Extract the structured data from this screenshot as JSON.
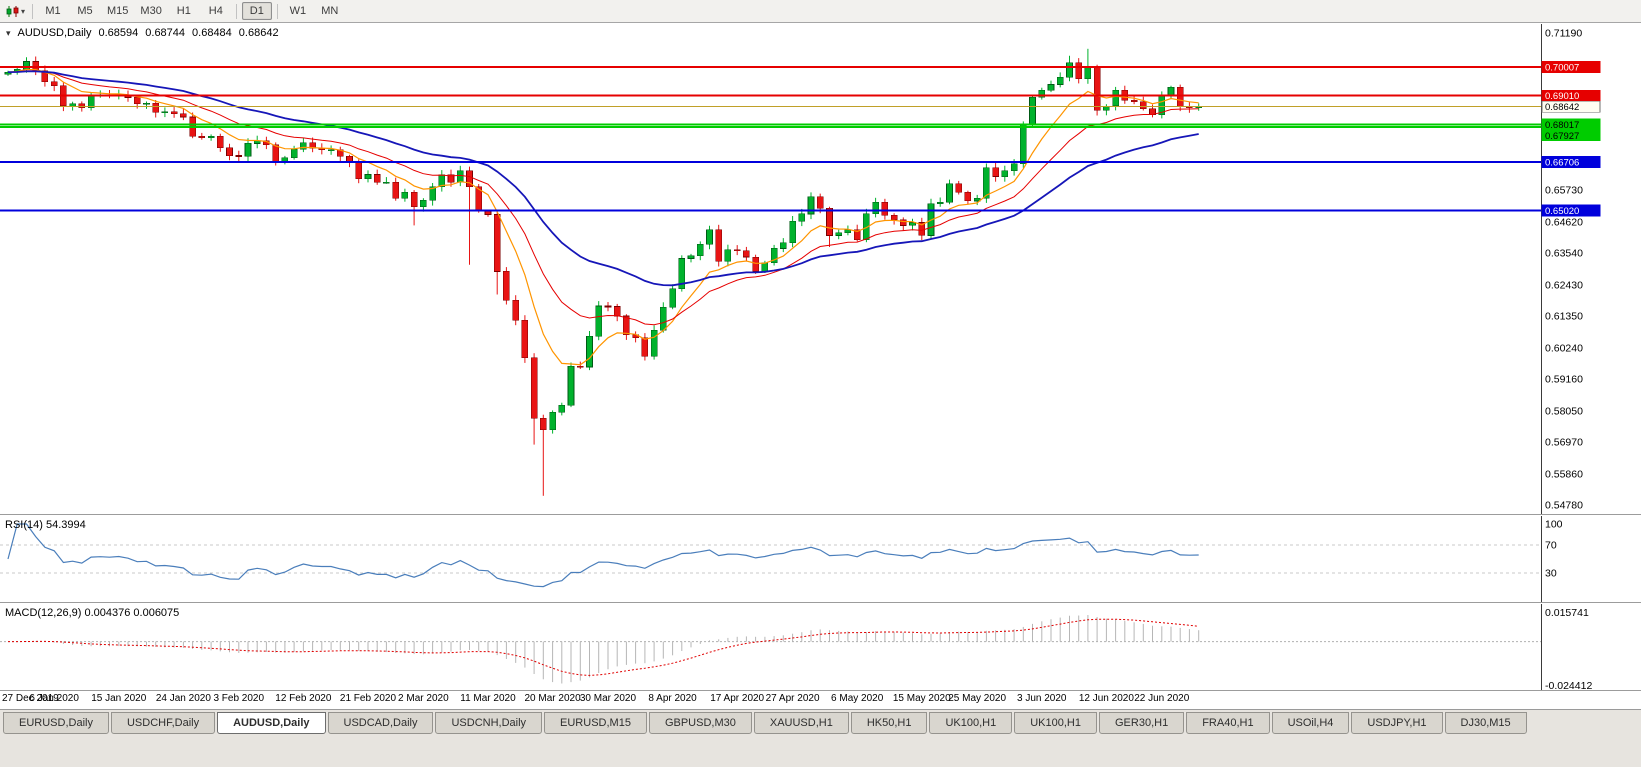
{
  "toolbar": {
    "timeframes": [
      {
        "label": "M1"
      },
      {
        "label": "M5"
      },
      {
        "label": "M15"
      },
      {
        "label": "M30"
      },
      {
        "label": "H1"
      },
      {
        "label": "H4",
        "sep_after": true
      },
      {
        "label": "D1",
        "active": true,
        "sep_after": true
      },
      {
        "label": "W1"
      },
      {
        "label": "MN"
      }
    ]
  },
  "chart_header": {
    "expand_icon": "▾",
    "symbol_tf": "AUDUSD,Daily",
    "open": "0.68594",
    "high": "0.68744",
    "low": "0.68484",
    "close": "0.68642"
  },
  "chart_data": {
    "type": "candlestick",
    "symbol": "AUDUSD",
    "timeframe": "Daily",
    "last_ohlc": {
      "open": 0.68594,
      "high": 0.68744,
      "low": 0.68484,
      "close": 0.68642
    },
    "y_range": {
      "top": 0.7119,
      "bottom": 0.5478
    },
    "y_ticks": [
      0.7119,
      0.6573,
      0.6462,
      0.6354,
      0.6243,
      0.6135,
      0.6024,
      0.5916,
      0.5805,
      0.5697,
      0.5586,
      0.5478
    ],
    "x_labels": [
      {
        "text": "27 Dec 2019",
        "bar": 0
      },
      {
        "text": "6 Jan 2020",
        "bar": 5
      },
      {
        "text": "15 Jan 2020",
        "bar": 12
      },
      {
        "text": "24 Jan 2020",
        "bar": 19
      },
      {
        "text": "3 Feb 2020",
        "bar": 25
      },
      {
        "text": "12 Feb 2020",
        "bar": 32
      },
      {
        "text": "21 Feb 2020",
        "bar": 39
      },
      {
        "text": "2 Mar 2020",
        "bar": 45
      },
      {
        "text": "11 Mar 2020",
        "bar": 52
      },
      {
        "text": "20 Mar 2020",
        "bar": 59
      },
      {
        "text": "30 Mar 2020",
        "bar": 65
      },
      {
        "text": "8 Apr 2020",
        "bar": 72
      },
      {
        "text": "17 Apr 2020",
        "bar": 79
      },
      {
        "text": "27 Apr 2020",
        "bar": 85
      },
      {
        "text": "6 May 2020",
        "bar": 92
      },
      {
        "text": "15 May 2020",
        "bar": 99
      },
      {
        "text": "25 May 2020",
        "bar": 105
      },
      {
        "text": "3 Jun 2020",
        "bar": 112
      },
      {
        "text": "12 Jun 2020",
        "bar": 119
      },
      {
        "text": "22 Jun 2020",
        "bar": 125
      }
    ],
    "first_open": 0.6975,
    "closes": [
      0.6983,
      0.6993,
      0.702,
      0.6988,
      0.695,
      0.6935,
      0.6865,
      0.6873,
      0.6859,
      0.69,
      0.6903,
      0.69,
      0.6905,
      0.6895,
      0.6873,
      0.6875,
      0.6843,
      0.6845,
      0.6838,
      0.6827,
      0.676,
      0.6755,
      0.676,
      0.672,
      0.6693,
      0.669,
      0.6735,
      0.6745,
      0.673,
      0.667,
      0.6685,
      0.6715,
      0.6738,
      0.6718,
      0.6713,
      0.6713,
      0.669,
      0.667,
      0.6612,
      0.6627,
      0.66,
      0.66,
      0.6545,
      0.6565,
      0.6515,
      0.6537,
      0.6585,
      0.6626,
      0.66,
      0.664,
      0.6584,
      0.65,
      0.6488,
      0.629,
      0.619,
      0.612,
      0.599,
      0.578,
      0.574,
      0.58,
      0.5825,
      0.596,
      0.5958,
      0.6065,
      0.617,
      0.6168,
      0.6135,
      0.607,
      0.606,
      0.5995,
      0.6085,
      0.6165,
      0.623,
      0.6335,
      0.6345,
      0.6385,
      0.6435,
      0.6325,
      0.6365,
      0.6362,
      0.634,
      0.629,
      0.632,
      0.637,
      0.639,
      0.6465,
      0.649,
      0.655,
      0.651,
      0.6415,
      0.6425,
      0.6435,
      0.64,
      0.649,
      0.653,
      0.6485,
      0.647,
      0.645,
      0.646,
      0.6415,
      0.6525,
      0.653,
      0.6595,
      0.6565,
      0.6535,
      0.6545,
      0.665,
      0.662,
      0.664,
      0.6665,
      0.68,
      0.6895,
      0.692,
      0.694,
      0.6965,
      0.7015,
      0.696,
      0.7,
      0.685,
      0.6865,
      0.692,
      0.6885,
      0.688,
      0.6855,
      0.6835,
      0.6905,
      0.693,
      0.6865,
      0.68594,
      0.68642
    ],
    "wick_overrides": {
      "2": {
        "h": 0.7035
      },
      "44": {
        "l": 0.645
      },
      "50": {
        "l": 0.6313
      },
      "53": {
        "l": 0.621
      },
      "57": {
        "l": 0.5688
      },
      "58": {
        "l": 0.551
      },
      "89": {
        "l": 0.6375
      },
      "115": {
        "h": 0.704
      },
      "117": {
        "h": 0.7064
      },
      "129": {
        "h": 0.68744,
        "l": 0.68484
      }
    },
    "moving_averages": [
      {
        "period": 8,
        "color": "#ff9500",
        "width": 1.2
      },
      {
        "period": 17,
        "color": "#e60000",
        "width": 1
      },
      {
        "period": 34,
        "color": "#1616b8",
        "width": 1.8
      }
    ],
    "hlines": [
      {
        "price": 0.70007,
        "label": "0.70007",
        "color": "#e60000",
        "width": 2,
        "text_color": "#ffffff"
      },
      {
        "price": 0.6901,
        "label": "0.69010",
        "color": "#e60000",
        "width": 2,
        "text_color": "#ffffff"
      },
      {
        "price": 0.68017,
        "label": "0.68017",
        "color": "#00cc00",
        "width": 2,
        "text_color": "#000000"
      },
      {
        "price": 0.67927,
        "label": "0.67927",
        "color": "#00cc00",
        "width": 2,
        "text_color": "#000000"
      },
      {
        "price": 0.66706,
        "label": "0.66706",
        "color": "#0000dc",
        "width": 2,
        "text_color": "#ffffff"
      },
      {
        "price": 0.6502,
        "label": "0.65020",
        "color": "#0000dc",
        "width": 2,
        "text_color": "#ffffff"
      }
    ],
    "current_price": {
      "value": 0.68642,
      "label": "0.68642",
      "line_color": "#c0a028",
      "badge_bg": "#fffef2",
      "badge_text": "#000000",
      "badge_border": "#707070"
    },
    "colors": {
      "up": "#00b22d",
      "up_border": "#005a14",
      "down": "#e81414",
      "down_border": "#7a0000",
      "background": "#ffffff",
      "axis_border": "#3a3a3a",
      "rsi": "#4a7ebb",
      "macd_hist": "#b6b6b6",
      "macd_signal": "#e00000"
    },
    "indicators": {
      "rsi": {
        "label": "RSI(14) 54.3994",
        "period": 14,
        "current": 54.3994,
        "levels": [
          70,
          30
        ],
        "scale_labels": [
          100,
          70,
          30
        ]
      },
      "macd": {
        "label": "MACD(12,26,9) 0.004376 0.006075",
        "fast": 12,
        "slow": 26,
        "signal_period": 9,
        "main": 0.004376,
        "signal": 0.006075,
        "axis_max": 0.015741,
        "axis_min": -0.024412
      }
    }
  },
  "tabs": [
    {
      "label": "EURUSD,Daily"
    },
    {
      "label": "USDCHF,Daily"
    },
    {
      "label": "AUDUSD,Daily",
      "active": true
    },
    {
      "label": "USDCAD,Daily"
    },
    {
      "label": "USDCNH,Daily"
    },
    {
      "label": "EURUSD,M15"
    },
    {
      "label": "GBPUSD,M30"
    },
    {
      "label": "XAUUSD,H1"
    },
    {
      "label": "HK50,H1"
    },
    {
      "label": "UK100,H1"
    },
    {
      "label": "UK100,H1"
    },
    {
      "label": "GER30,H1"
    },
    {
      "label": "FRA40,H1"
    },
    {
      "label": "USOil,H4"
    },
    {
      "label": "USDJPY,H1"
    },
    {
      "label": "DJ30,M15"
    }
  ]
}
